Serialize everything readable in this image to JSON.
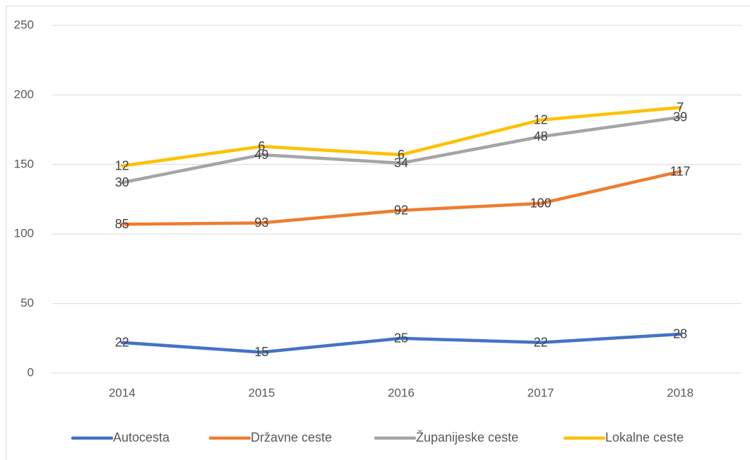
{
  "chart_data": {
    "type": "line",
    "stacked": true,
    "categories": [
      "2014",
      "2015",
      "2016",
      "2017",
      "2018"
    ],
    "series": [
      {
        "name": "Autocesta",
        "color": "#4472c4",
        "values": [
          22,
          15,
          25,
          22,
          28
        ]
      },
      {
        "name": "Državne ceste",
        "color": "#ed7d31",
        "values": [
          85,
          93,
          92,
          100,
          117
        ]
      },
      {
        "name": "Županijeske ceste",
        "color": "#a5a5a5",
        "values": [
          30,
          49,
          34,
          48,
          39
        ]
      },
      {
        "name": "Lokalne ceste",
        "color": "#ffc000",
        "values": [
          12,
          6,
          6,
          12,
          7
        ]
      }
    ],
    "ylim": [
      0,
      250
    ],
    "yticks": [
      0,
      50,
      100,
      150,
      200,
      250
    ],
    "grid": true,
    "legend": "bottom"
  }
}
